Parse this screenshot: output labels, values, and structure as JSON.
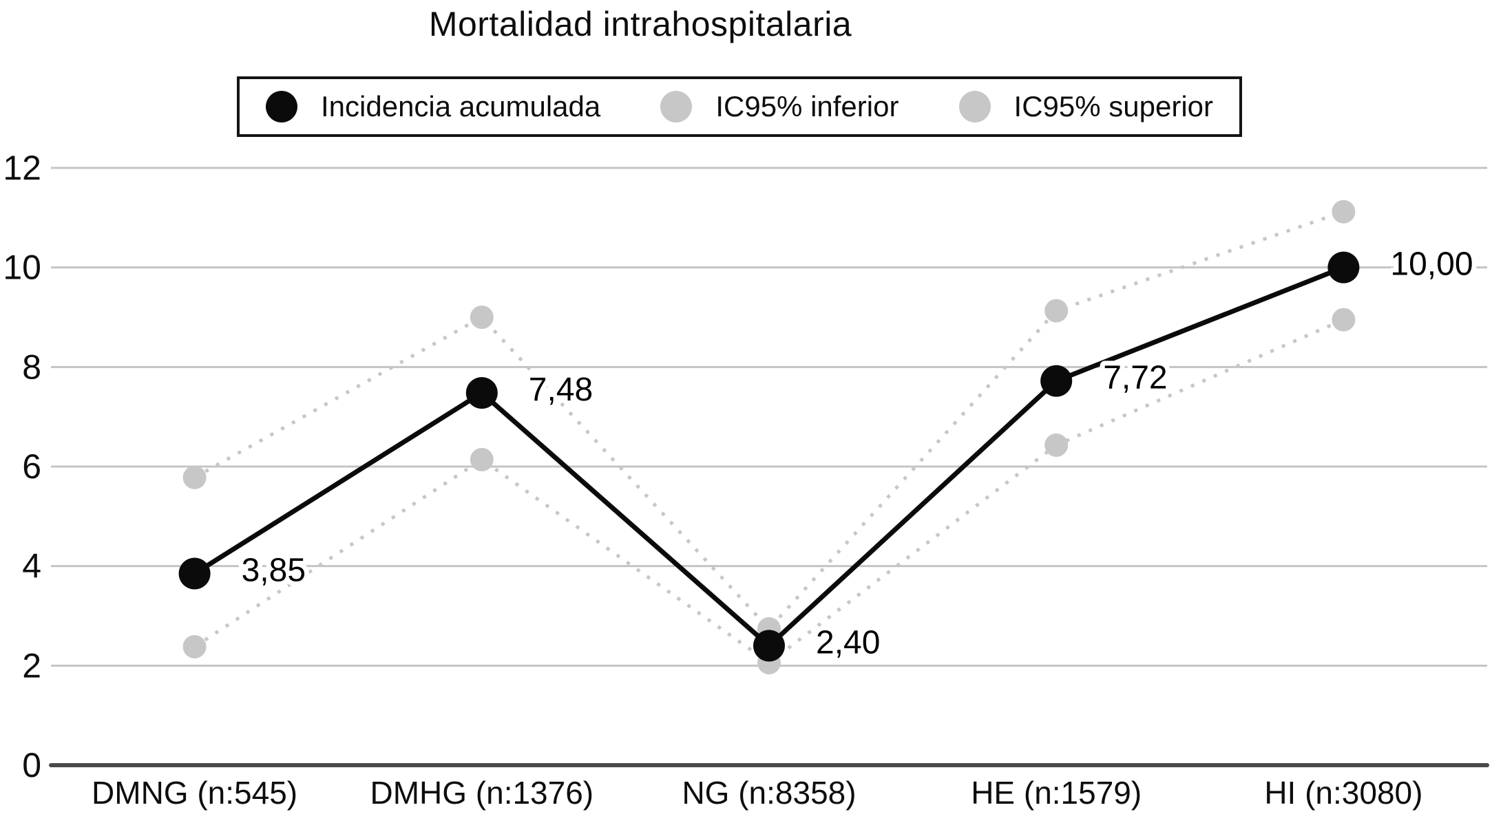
{
  "chart_data": {
    "type": "line",
    "title": "Mortalidad intrahospitalaria",
    "categories": [
      "DMNG (n:545)",
      "DMHG (n:1376)",
      "NG (n:8358)",
      "HE (n:1579)",
      "HI (n:3080)"
    ],
    "series": [
      {
        "name": "Incidencia acumulada",
        "color": "#0b0b0b",
        "style": "solid",
        "marker_radius": 23,
        "values": [
          3.85,
          7.48,
          2.4,
          7.72,
          10.0
        ],
        "point_labels": [
          "3,85",
          "7,48",
          "2,40",
          "7,72",
          "10,00"
        ]
      },
      {
        "name": "IC95% inferior",
        "color": "#c7c7c7",
        "style": "dotted",
        "marker_radius": 17,
        "values": [
          2.38,
          6.14,
          2.06,
          6.43,
          8.95
        ]
      },
      {
        "name": "IC95% superior",
        "color": "#c7c7c7",
        "style": "dotted",
        "marker_radius": 17,
        "values": [
          5.78,
          9.0,
          2.74,
          9.13,
          11.12
        ]
      }
    ],
    "xlabel": "",
    "ylabel": "",
    "ylim": [
      0,
      12
    ],
    "yticks": [
      0,
      2,
      4,
      6,
      8,
      10,
      12
    ],
    "grid": true,
    "legend_position": "top",
    "colors": {
      "gridline": "#c4c4c4",
      "axis_line": "#4a4a4a",
      "tick_text": "#0d0d0d",
      "label_text": "#000000"
    }
  }
}
